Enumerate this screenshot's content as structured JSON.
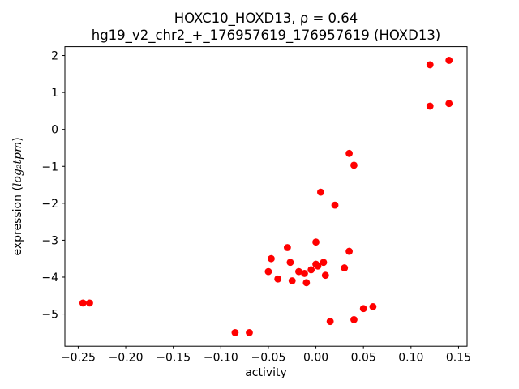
{
  "chart_data": {
    "type": "scatter",
    "title_line1": "HOXC10_HOXD13, ρ = 0.64",
    "title_line2": "hg19_v2_chr2_+_176957619_176957619 (HOXD13)",
    "xlabel": "activity",
    "ylabel_prefix": "expression (",
    "ylabel_math": "log₂tpm",
    "ylabel_suffix": ")",
    "marker_color": "#ff0000",
    "marker_radius": 4.4,
    "grid": false,
    "legend": "none",
    "xlim": [
      -0.264,
      0.159
    ],
    "ylim": [
      -5.87,
      2.24
    ],
    "x_ticks": [
      {
        "v": -0.25,
        "label": "−0.25"
      },
      {
        "v": -0.2,
        "label": "−0.20"
      },
      {
        "v": -0.15,
        "label": "−0.15"
      },
      {
        "v": -0.1,
        "label": "−0.10"
      },
      {
        "v": -0.05,
        "label": "−0.05"
      },
      {
        "v": 0.0,
        "label": "0.00"
      },
      {
        "v": 0.05,
        "label": "0.05"
      },
      {
        "v": 0.1,
        "label": "0.10"
      },
      {
        "v": 0.15,
        "label": "0.15"
      }
    ],
    "y_ticks": [
      {
        "v": 2,
        "label": "2"
      },
      {
        "v": 1,
        "label": "1"
      },
      {
        "v": 0,
        "label": "0"
      },
      {
        "v": -1,
        "label": "−1"
      },
      {
        "v": -2,
        "label": "−2"
      },
      {
        "v": -3,
        "label": "−3"
      },
      {
        "v": -4,
        "label": "−4"
      },
      {
        "v": -5,
        "label": "−5"
      }
    ],
    "points": [
      [
        -0.245,
        -4.7
      ],
      [
        -0.238,
        -4.7
      ],
      [
        -0.085,
        -5.5
      ],
      [
        -0.07,
        -5.5
      ],
      [
        -0.05,
        -3.85
      ],
      [
        -0.047,
        -3.5
      ],
      [
        -0.04,
        -4.05
      ],
      [
        -0.03,
        -3.2
      ],
      [
        -0.027,
        -3.6
      ],
      [
        -0.025,
        -4.1
      ],
      [
        -0.018,
        -3.85
      ],
      [
        -0.012,
        -3.9
      ],
      [
        -0.01,
        -4.15
      ],
      [
        -0.005,
        -3.8
      ],
      [
        0.0,
        -3.05
      ],
      [
        0.0,
        -3.65
      ],
      [
        0.002,
        -3.7
      ],
      [
        0.005,
        -1.7
      ],
      [
        0.008,
        -3.6
      ],
      [
        0.01,
        -3.95
      ],
      [
        0.015,
        -5.2
      ],
      [
        0.02,
        -2.05
      ],
      [
        0.03,
        -3.75
      ],
      [
        0.035,
        -3.3
      ],
      [
        0.035,
        -0.65
      ],
      [
        0.04,
        -0.97
      ],
      [
        0.04,
        -5.15
      ],
      [
        0.05,
        -4.85
      ],
      [
        0.06,
        -4.8
      ],
      [
        0.12,
        1.75
      ],
      [
        0.12,
        0.63
      ],
      [
        0.14,
        1.87
      ],
      [
        0.14,
        0.7
      ]
    ]
  }
}
